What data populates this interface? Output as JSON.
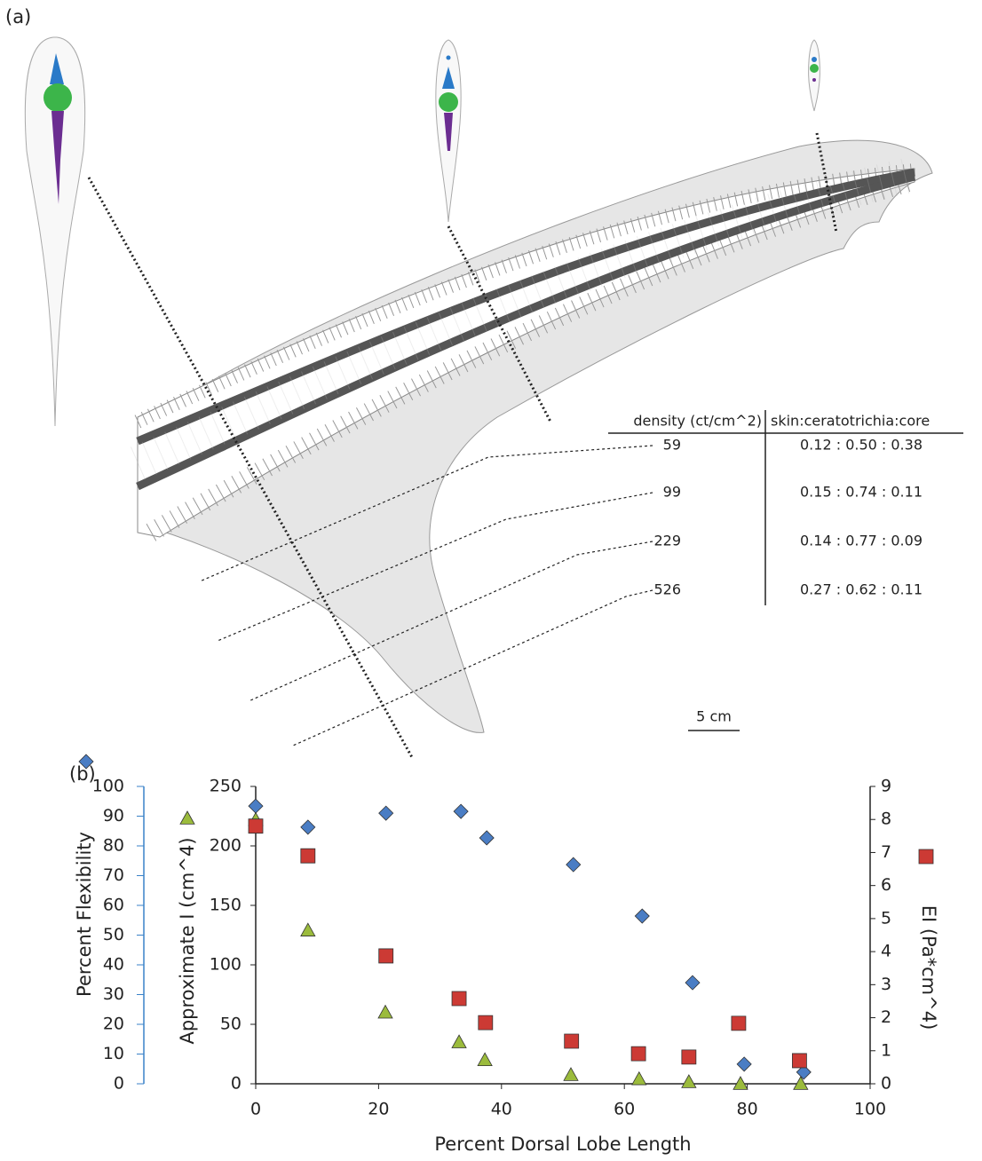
{
  "panel_a": {
    "label": "(a)",
    "table": {
      "header": [
        "density (ct/cm^2)",
        "skin:ceratotrichia:core"
      ],
      "rows": [
        [
          "59",
          "0.12 : 0.50 : 0.38"
        ],
        [
          "99",
          "0.15 : 0.74 : 0.11"
        ],
        [
          "229",
          "0.14 : 0.77 : 0.09"
        ],
        [
          "526",
          "0.27 : 0.62 : 0.11"
        ]
      ]
    },
    "scale_bar": "5 cm"
  },
  "panel_b": {
    "label": "(b)"
  },
  "chart_data": {
    "type": "scatter",
    "xlabel": "Percent Dorsal Lobe Length",
    "xlim": [
      0,
      100
    ],
    "xticks": [
      0,
      20,
      40,
      60,
      80,
      100
    ],
    "ylabel": "Percent Flexibility",
    "ylim": [
      0,
      100
    ],
    "yticks": [
      0,
      10,
      20,
      30,
      40,
      50,
      60,
      70,
      80,
      90,
      100
    ],
    "y2label": "Approximate I (cm^4)",
    "y2lim": [
      0,
      250
    ],
    "y2ticks": [
      0,
      50,
      100,
      150,
      200,
      250
    ],
    "y3label": "EI (Pa*cm^4)",
    "y3lim": [
      0,
      9
    ],
    "y3ticks": [
      0,
      1,
      2,
      3,
      4,
      5,
      6,
      7,
      8,
      9
    ],
    "series": [
      {
        "axis": "y",
        "marker": "diamond",
        "color": "#4a7dc4",
        "x": [
          0,
          8.5,
          21.2,
          33.4,
          37.6,
          51.7,
          62.9,
          71.1,
          79.5,
          89.2
        ],
        "values": [
          93.4,
          86.3,
          91,
          91.6,
          82.7,
          73.7,
          56.4,
          34,
          6.6,
          3.9
        ]
      },
      {
        "axis": "y2",
        "marker": "triangle",
        "color": "#9bbb3c",
        "x": [
          0,
          8.5,
          21.1,
          33.1,
          37.3,
          51.3,
          62.4,
          70.5,
          78.9,
          88.7
        ],
        "values": [
          222,
          129,
          60,
          35,
          20,
          7.5,
          4,
          1.5,
          0,
          0
        ]
      },
      {
        "axis": "y3",
        "marker": "square",
        "color": "#cc3a34",
        "x": [
          0,
          8.5,
          21.2,
          33.1,
          37.4,
          51.4,
          62.3,
          70.5,
          78.6,
          88.5
        ],
        "values": [
          7.8,
          6.9,
          3.87,
          2.58,
          1.85,
          1.29,
          0.91,
          0.81,
          1.83,
          0.7
        ]
      }
    ]
  }
}
